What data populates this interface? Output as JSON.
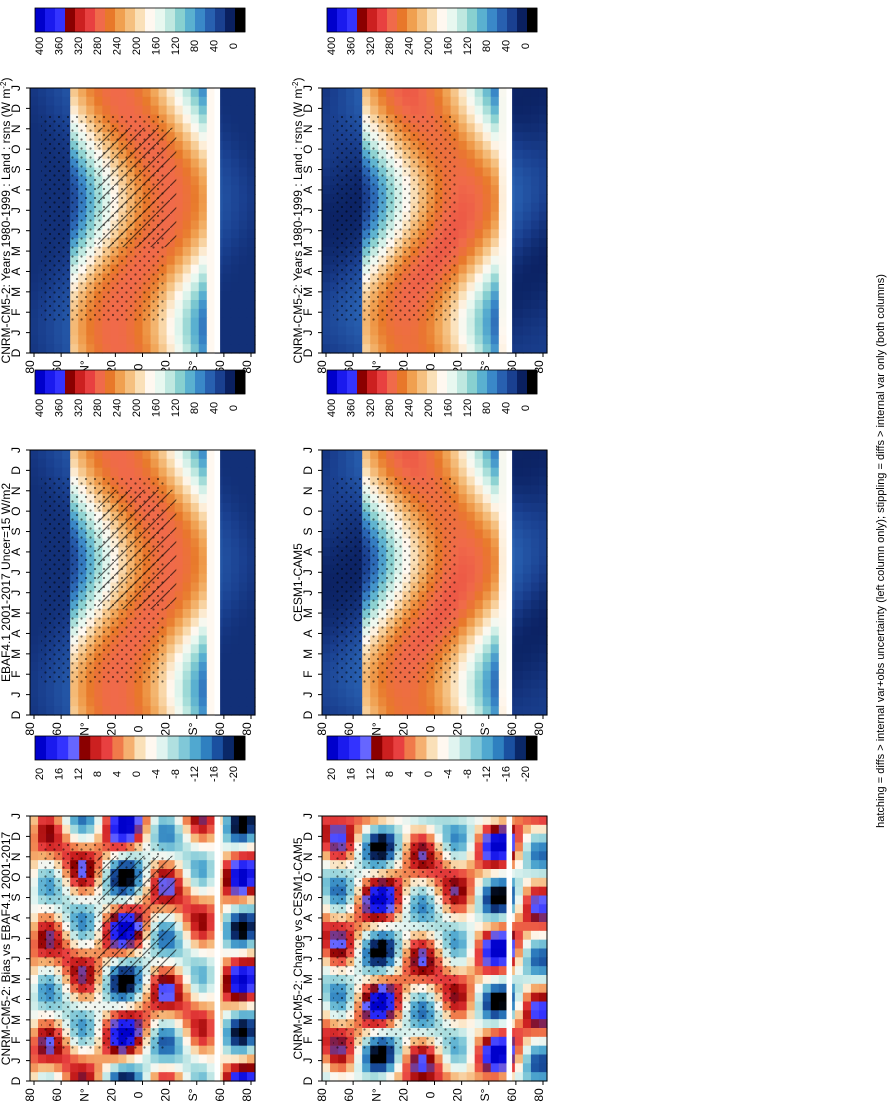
{
  "footnote": "hatching = diffs > internal var+obs uncertainty (left column only); stippling = diffs > internal var only (both columns)",
  "colors": {
    "abs_scale": [
      "#0000cc",
      "#1a1aee",
      "#3333ff",
      "#8b0000",
      "#cc2020",
      "#e84040",
      "#f06a4a",
      "#e8782a",
      "#f0a050",
      "#f5c080",
      "#fae0b8",
      "#fff8f0",
      "#e8f8f0",
      "#bfe8e0",
      "#88d0d0",
      "#5ab0d0",
      "#3a88c8",
      "#2860b0",
      "#1a4090",
      "#0a2060",
      "#000000"
    ],
    "diff_scale": [
      "#0000cc",
      "#1a1aee",
      "#3333ff",
      "#6666ff",
      "#8b0000",
      "#cc2020",
      "#e84040",
      "#f07a4a",
      "#f5b070",
      "#fae0b8",
      "#fff8f0",
      "#e0f4f0",
      "#b0e0e0",
      "#80c8d8",
      "#50a8d0",
      "#2f80c0",
      "#1a50a0",
      "#0a2868",
      "#000000"
    ]
  },
  "chart_data": [
    {
      "panel": "top-left",
      "type": "heatmap",
      "title": "CNRM-CM5-2: Years 1980-1999 : Land : rsns (W m",
      "title_sup": "-2",
      "title_close": ")",
      "xlabel": "",
      "ylabel": "",
      "x_ticks": [
        "D",
        "J",
        "F",
        "M",
        "A",
        "M",
        "J",
        "J",
        "A",
        "S",
        "O",
        "N",
        "D",
        "J"
      ],
      "y_ticks": [
        "80",
        "60",
        "N°",
        "20",
        "0",
        "20",
        "S°",
        "60",
        "80"
      ],
      "colorbar_ticks": [
        "400",
        "360",
        "320",
        "280",
        "240",
        "200",
        "160",
        "120",
        "80",
        "40",
        "0"
      ],
      "zlim": [
        0,
        400
      ],
      "colorbar_scale": "abs",
      "hatching": true,
      "stippling": true
    },
    {
      "panel": "top-right",
      "type": "heatmap",
      "title": "CNRM-CM5-2: Years 1980-1999 : Land : rsns (W m",
      "title_sup": "-2",
      "title_close": ")",
      "xlabel": "",
      "ylabel": "",
      "x_ticks": [
        "D",
        "J",
        "F",
        "M",
        "A",
        "M",
        "J",
        "J",
        "A",
        "S",
        "O",
        "N",
        "D",
        "J"
      ],
      "y_ticks": [
        "80",
        "60",
        "N°",
        "20",
        "0",
        "20",
        "S°",
        "60",
        "80"
      ],
      "colorbar_ticks": [
        "400",
        "360",
        "320",
        "280",
        "240",
        "200",
        "160",
        "120",
        "80",
        "40",
        "0"
      ],
      "zlim": [
        0,
        400
      ],
      "colorbar_scale": "abs",
      "hatching": false,
      "stippling": true
    },
    {
      "panel": "middle-left",
      "type": "heatmap",
      "title": "EBAF4.1 2001-2017 Uncer=15 W/m2",
      "xlabel": "",
      "ylabel": "",
      "x_ticks": [
        "D",
        "J",
        "F",
        "M",
        "A",
        "M",
        "J",
        "J",
        "A",
        "S",
        "O",
        "N",
        "D",
        "J"
      ],
      "y_ticks": [
        "80",
        "60",
        "N°",
        "20",
        "0",
        "20",
        "S°",
        "60",
        "80"
      ],
      "colorbar_ticks": [
        "400",
        "360",
        "320",
        "280",
        "240",
        "200",
        "160",
        "120",
        "80",
        "40",
        "0"
      ],
      "zlim": [
        0,
        400
      ],
      "colorbar_scale": "abs",
      "hatching": true,
      "stippling": true
    },
    {
      "panel": "middle-right",
      "type": "heatmap",
      "title": "CESM1-CAM5",
      "xlabel": "",
      "ylabel": "",
      "x_ticks": [
        "D",
        "J",
        "F",
        "M",
        "A",
        "M",
        "J",
        "J",
        "A",
        "S",
        "O",
        "N",
        "D",
        "J"
      ],
      "y_ticks": [
        "80",
        "60",
        "N°",
        "20",
        "0",
        "20",
        "S°",
        "60",
        "80"
      ],
      "colorbar_ticks": [
        "400",
        "360",
        "320",
        "280",
        "240",
        "200",
        "160",
        "120",
        "80",
        "40",
        "0"
      ],
      "zlim": [
        0,
        400
      ],
      "colorbar_scale": "abs",
      "hatching": false,
      "stippling": true
    },
    {
      "panel": "bottom-left",
      "type": "heatmap",
      "title": "CNRM-CM5-2: Bias vs EBAF4.1 2001-2017",
      "xlabel": "",
      "ylabel": "",
      "x_ticks": [
        "D",
        "J",
        "F",
        "M",
        "A",
        "M",
        "J",
        "J",
        "A",
        "S",
        "O",
        "N",
        "D",
        "J"
      ],
      "y_ticks": [
        "80",
        "60",
        "N°",
        "20",
        "0",
        "20",
        "S°",
        "60",
        "80"
      ],
      "colorbar_ticks": [
        "20",
        "16",
        "12",
        "8",
        "4",
        "0",
        "-4",
        "-8",
        "-12",
        "-16",
        "-20"
      ],
      "zlim": [
        -20,
        20
      ],
      "colorbar_scale": "diff",
      "hatching": true,
      "stippling": true
    },
    {
      "panel": "bottom-right",
      "type": "heatmap",
      "title": "CNRM-CM5-2: Change vs CESM1-CAM5",
      "xlabel": "",
      "ylabel": "",
      "x_ticks": [
        "D",
        "J",
        "F",
        "M",
        "A",
        "M",
        "J",
        "J",
        "A",
        "S",
        "O",
        "N",
        "D",
        "J"
      ],
      "y_ticks": [
        "80",
        "60",
        "N°",
        "20",
        "0",
        "20",
        "S°",
        "60",
        "80"
      ],
      "colorbar_ticks": [
        "20",
        "16",
        "12",
        "8",
        "4",
        "0",
        "-4",
        "-8",
        "-12",
        "-16",
        "-20"
      ],
      "zlim": [
        -20,
        20
      ],
      "colorbar_scale": "diff",
      "hatching": false,
      "stippling": true
    }
  ]
}
